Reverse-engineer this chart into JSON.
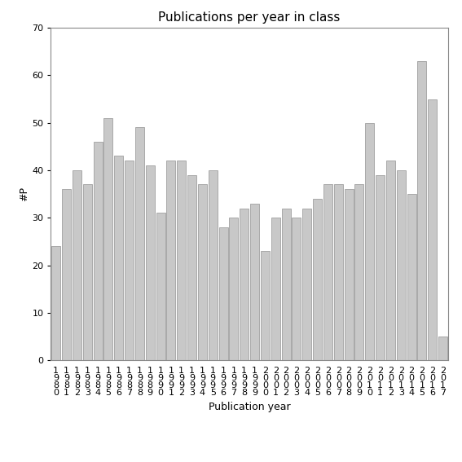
{
  "title": "Publications per year in class",
  "xlabel": "Publication year",
  "ylabel": "#P",
  "categories": [
    "1980",
    "1981",
    "1982",
    "1983",
    "1984",
    "1985",
    "1986",
    "1987",
    "1988",
    "1989",
    "1990",
    "1991",
    "1992",
    "1993",
    "1994",
    "1995",
    "1996",
    "1997",
    "1998",
    "1999",
    "2000",
    "2001",
    "2002",
    "2003",
    "2004",
    "2005",
    "2006",
    "2007",
    "2008",
    "2009",
    "2010",
    "2011",
    "2012",
    "2013",
    "2014",
    "2015",
    "2016",
    "2017"
  ],
  "values": [
    24,
    36,
    40,
    37,
    46,
    51,
    43,
    42,
    49,
    41,
    31,
    42,
    42,
    39,
    37,
    40,
    28,
    30,
    32,
    33,
    23,
    30,
    32,
    30,
    32,
    34,
    37,
    37,
    36,
    37,
    50,
    39,
    42,
    40,
    35,
    63,
    55,
    5
  ],
  "bar_color": "#c8c8c8",
  "bar_edge_color": "#a0a0a0",
  "ylim": [
    0,
    70
  ],
  "yticks": [
    0,
    10,
    20,
    30,
    40,
    50,
    60,
    70
  ],
  "background_color": "#ffffff",
  "title_fontsize": 11,
  "axis_label_fontsize": 9,
  "tick_fontsize": 8
}
